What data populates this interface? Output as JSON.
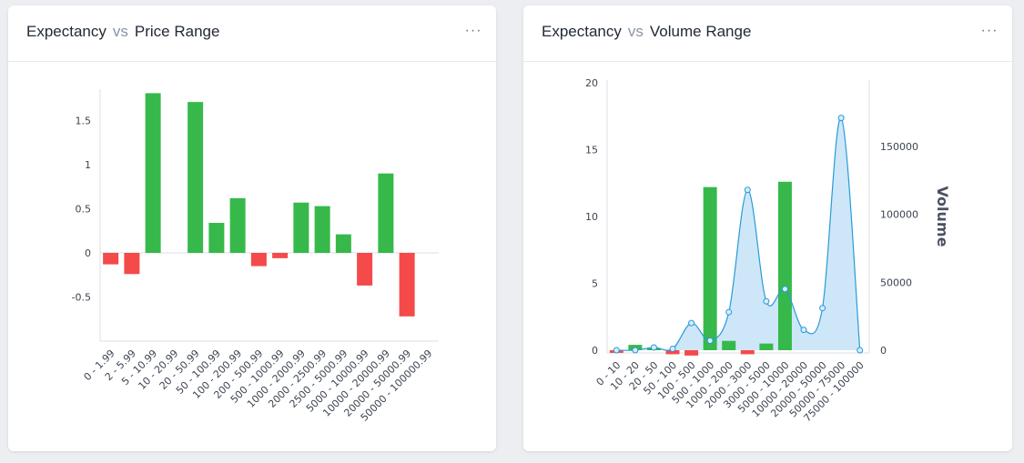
{
  "cards": [
    {
      "title_left": "Expectancy",
      "vs": "vs",
      "title_right": "Price Range",
      "menu_label": "···"
    },
    {
      "title_left": "Expectancy",
      "vs": "vs",
      "title_right": "Volume Range",
      "menu_label": "···"
    }
  ],
  "colors": {
    "positive": "#36b94a",
    "negative": "#f44a4a",
    "area_fill": "#c8e4f8",
    "area_line": "#2a9ad8"
  },
  "chart_data": [
    {
      "type": "bar",
      "categories": [
        "0 - 1.99",
        "2 - 5.99",
        "5 - 10.99",
        "10 - 20.99",
        "20 - 50.99",
        "50 - 100.99",
        "100 - 200.99",
        "200 - 500.99",
        "500 - 1000.99",
        "1000 - 2000.99",
        "2000 - 2500.99",
        "2500 - 5000.99",
        "5000 - 10000.99",
        "10000 - 20000.99",
        "20000 - 50000.99",
        "50000 - 100000.99"
      ],
      "values": [
        -0.13,
        -0.24,
        1.81,
        0,
        1.71,
        0.34,
        0.62,
        -0.15,
        -0.06,
        0.57,
        0.53,
        0.21,
        -0.37,
        0.9,
        -0.72,
        0
      ],
      "y_ticks": [
        "-0.5",
        "0",
        "0.5",
        "1",
        "1.5"
      ],
      "ylim": [
        -1,
        1.85
      ],
      "title": "",
      "xlabel": "",
      "ylabel": ""
    },
    {
      "type": "bar",
      "categories": [
        "0 - 10",
        "10 - 20",
        "20 - 50",
        "50 - 100",
        "100 - 500",
        "500 - 1000",
        "1000 - 2000",
        "2000 - 3000",
        "3000 - 5000",
        "5000 - 10000",
        "10000 - 20000",
        "20000 - 50000",
        "50000 - 75000",
        "75000 - 100000"
      ],
      "values": [
        -0.2,
        0.4,
        0.15,
        -0.3,
        -0.4,
        12.2,
        0.7,
        -0.3,
        0.5,
        12.6,
        0,
        0,
        0,
        0
      ],
      "series": [
        {
          "name": "Volume",
          "type": "area",
          "values": [
            0,
            0,
            2000,
            1000,
            20000,
            7000,
            28000,
            118000,
            36000,
            45000,
            15000,
            31000,
            171000,
            0
          ]
        }
      ],
      "y_ticks": [
        "0",
        "5",
        "10",
        "15",
        "20"
      ],
      "ylim": [
        0,
        20
      ],
      "y2_ticks": [
        "0",
        "50000",
        "100000",
        "150000"
      ],
      "y2lim": [
        0,
        200000
      ],
      "y2label": "Volume",
      "title": "",
      "xlabel": ""
    }
  ]
}
